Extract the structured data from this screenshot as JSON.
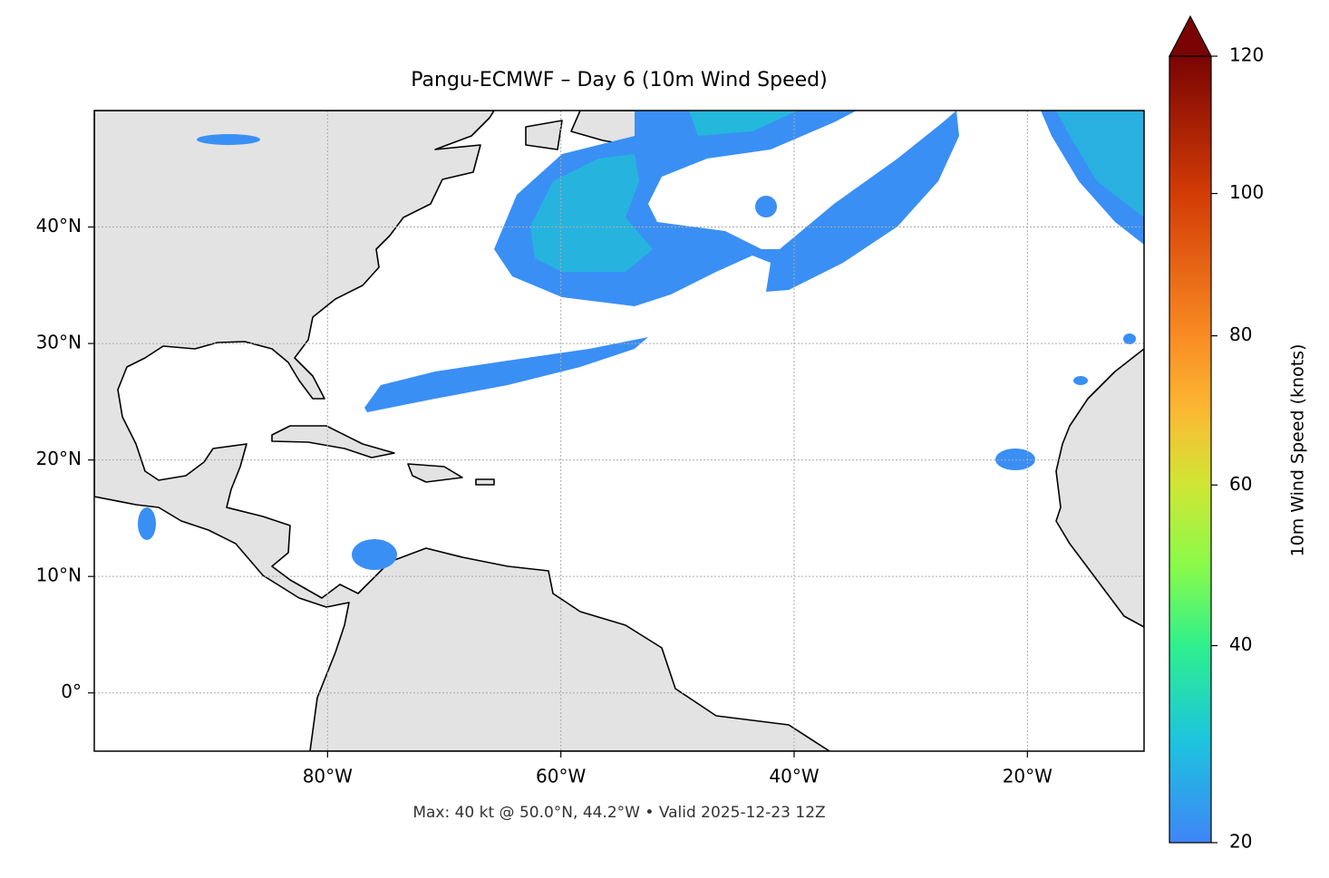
{
  "chart_data": {
    "type": "map",
    "title": "Pangu-ECMWF – Day 6 (10m Wind Speed)",
    "annotation": "Max: 40 kt @ 50.0°N, 44.2°W • Valid 2025-12-23 12Z",
    "xlim": [
      -100,
      -10
    ],
    "ylim": [
      -5,
      50
    ],
    "xticks": [
      {
        "value": -80,
        "label": "80°W"
      },
      {
        "value": -60,
        "label": "60°W"
      },
      {
        "value": -40,
        "label": "40°W"
      },
      {
        "value": -20,
        "label": "20°W"
      }
    ],
    "yticks": [
      {
        "value": 0,
        "label": "0°"
      },
      {
        "value": 10,
        "label": "10°N"
      },
      {
        "value": 20,
        "label": "20°N"
      },
      {
        "value": 30,
        "label": "30°N"
      },
      {
        "value": 40,
        "label": "40°N"
      }
    ],
    "grid": true,
    "colorbar": {
      "label": "10m Wind Speed (knots)",
      "lim": [
        20,
        120
      ],
      "ticks": [
        20,
        40,
        60,
        80,
        100,
        120
      ],
      "norm": "power",
      "gamma": 0.86,
      "extend": "max"
    }
  }
}
